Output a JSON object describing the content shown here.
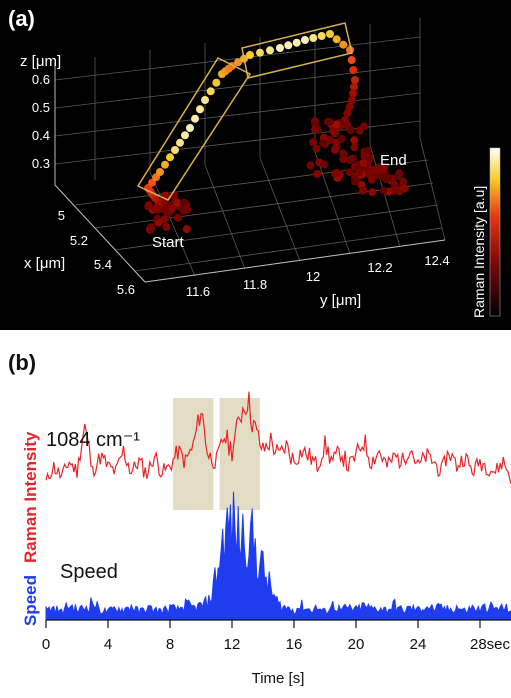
{
  "panel_a": {
    "label": "(a)",
    "z_axis_label": "z [μm]",
    "x_axis_label": "x [μm]",
    "y_axis_label": "y [μm]",
    "start_label": "Start",
    "end_label": "End",
    "colorbar_label": "Raman Intensity [a.u]"
  },
  "panel_b": {
    "label": "(b)",
    "raman_axis_label": "Raman Intensity",
    "speed_axis_label": "Speed",
    "peak_label": "1084 cm⁻¹",
    "speed_trace_label": "Speed",
    "x_axis_label": "Time [s]"
  },
  "colors": {
    "raman_trace": "#e8242a",
    "speed_trace": "#1f3cf0",
    "highlight": "#d9d0b2",
    "box_outline": "#d8b04a",
    "background_a": "#000000"
  },
  "chart_data": [
    {
      "type": "scatter",
      "dimensions": 3,
      "axes": {
        "x": {
          "label": "x [μm]",
          "ticks": [
            "5",
            "5.2",
            "5.4",
            "5.6"
          ],
          "range": [
            4.9,
            5.7
          ]
        },
        "y": {
          "label": "y [μm]",
          "ticks": [
            "11.6",
            "11.8",
            "12",
            "12.2",
            "12.4"
          ],
          "range": [
            11.5,
            12.5
          ]
        },
        "z": {
          "label": "z [μm]",
          "ticks": [
            "0.3",
            "0.4",
            "0.5",
            "0.6"
          ],
          "range": [
            0.25,
            0.65
          ]
        }
      },
      "colorbar": {
        "label": "Raman Intensity [a.u]",
        "colormap": "black-red-yellow-white"
      },
      "annotations": [
        "Start",
        "End"
      ]
    },
    {
      "type": "line",
      "x_ticks": [
        "0",
        "4",
        "8",
        "12",
        "16",
        "20",
        "24",
        "28sec"
      ],
      "xlabel": "Time [s]",
      "xlim": [
        0,
        30
      ],
      "highlight_intervals": [
        [
          8.2,
          10.8
        ],
        [
          11.2,
          13.8
        ]
      ],
      "series": [
        {
          "name": "1084 cm⁻¹",
          "ylabel": "Raman Intensity",
          "time": [
            0,
            0.5,
            1,
            1.5,
            2,
            2.4,
            3,
            3.5,
            4,
            4.5,
            5,
            5.5,
            6,
            6.5,
            7,
            7.5,
            8,
            8.5,
            9,
            9.5,
            10,
            10.5,
            11,
            11.5,
            12,
            12.5,
            13,
            13.5,
            14,
            14.5,
            15,
            15.5,
            16,
            16.5,
            17,
            17.5,
            18,
            18.5,
            19,
            19.5,
            20,
            20.5,
            21,
            21.5,
            22,
            22.5,
            23,
            23.5,
            24,
            24.5,
            25,
            25.5,
            26,
            26.5,
            27,
            27.5,
            28,
            28.5,
            29,
            29.5,
            30
          ],
          "values": [
            0.2,
            0.35,
            0.25,
            0.4,
            0.3,
            0.75,
            0.3,
            0.45,
            0.35,
            0.3,
            0.5,
            0.3,
            0.4,
            0.28,
            0.45,
            0.3,
            0.35,
            0.5,
            0.4,
            0.55,
            0.9,
            0.45,
            0.4,
            0.65,
            0.5,
            0.85,
            1.0,
            0.7,
            0.5,
            0.6,
            0.45,
            0.55,
            0.4,
            0.5,
            0.45,
            0.35,
            0.55,
            0.4,
            0.5,
            0.35,
            0.45,
            0.6,
            0.4,
            0.5,
            0.35,
            0.45,
            0.4,
            0.55,
            0.35,
            0.45,
            0.4,
            0.3,
            0.5,
            0.35,
            0.45,
            0.3,
            0.4,
            0.35,
            0.3,
            0.4,
            0.25
          ]
        },
        {
          "name": "Speed",
          "ylabel": "Speed",
          "time": [
            0,
            0.5,
            1,
            1.5,
            2,
            2.5,
            3,
            3.5,
            4,
            4.5,
            5,
            5.5,
            6,
            6.5,
            7,
            7.5,
            8,
            8.5,
            9,
            9.5,
            10,
            10.5,
            11,
            11.5,
            12,
            12.5,
            13,
            13.5,
            14,
            14.5,
            15,
            15.5,
            16,
            16.5,
            17,
            17.5,
            18,
            18.5,
            19,
            19.5,
            20,
            20.5,
            21,
            21.5,
            22,
            22.5,
            23,
            23.5,
            24,
            24.5,
            25,
            25.5,
            26,
            26.5,
            27,
            27.5,
            28,
            28.5,
            29,
            29.5,
            30
          ],
          "values": [
            0.1,
            0.12,
            0.08,
            0.15,
            0.1,
            0.12,
            0.18,
            0.1,
            0.08,
            0.12,
            0.1,
            0.14,
            0.08,
            0.12,
            0.1,
            0.09,
            0.12,
            0.1,
            0.15,
            0.12,
            0.14,
            0.18,
            0.45,
            0.85,
            0.95,
            0.8,
            0.9,
            0.7,
            0.5,
            0.3,
            0.15,
            0.12,
            0.1,
            0.14,
            0.1,
            0.12,
            0.08,
            0.15,
            0.1,
            0.12,
            0.1,
            0.14,
            0.11,
            0.12,
            0.1,
            0.15,
            0.09,
            0.12,
            0.1,
            0.14,
            0.11,
            0.12,
            0.1,
            0.13,
            0.09,
            0.12,
            0.1,
            0.14,
            0.11,
            0.12,
            0.1
          ]
        }
      ]
    }
  ]
}
